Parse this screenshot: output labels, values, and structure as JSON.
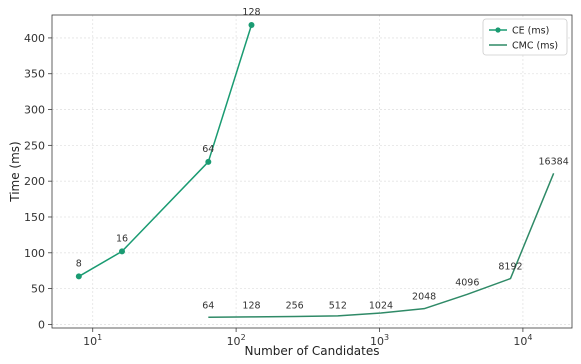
{
  "chart_data": {
    "type": "line",
    "title": "",
    "xlabel": "Number of Candidates",
    "ylabel": "Time (ms)",
    "xscale": "log",
    "xlim": [
      5.2,
      22000
    ],
    "ylim": [
      -5,
      432
    ],
    "grid": true,
    "legend_position": "top-right",
    "x_ticks": [
      {
        "value": 10,
        "base": "10",
        "exp": "1"
      },
      {
        "value": 100,
        "base": "10",
        "exp": "2"
      },
      {
        "value": 1000,
        "base": "10",
        "exp": "3"
      },
      {
        "value": 10000,
        "base": "10",
        "exp": "4"
      }
    ],
    "y_ticks": [
      0,
      50,
      100,
      150,
      200,
      250,
      300,
      350,
      400
    ],
    "series": [
      {
        "name": "CE (ms)",
        "color": "#1a9b72",
        "marker": "circle",
        "x": [
          8,
          16,
          64,
          128
        ],
        "y": [
          67,
          102,
          227,
          418
        ],
        "labels": [
          "8",
          "16",
          "64",
          "128"
        ]
      },
      {
        "name": "CMC (ms)",
        "color": "#2f8a67",
        "marker": "none",
        "x": [
          64,
          128,
          256,
          512,
          1024,
          2048,
          4096,
          8192,
          16384
        ],
        "y": [
          10,
          10.5,
          11,
          12,
          16,
          22,
          42,
          64,
          211
        ],
        "labels": [
          "64",
          "128",
          "256",
          "512",
          "1024",
          "2048",
          "4096",
          "8192",
          "16384"
        ]
      }
    ]
  }
}
